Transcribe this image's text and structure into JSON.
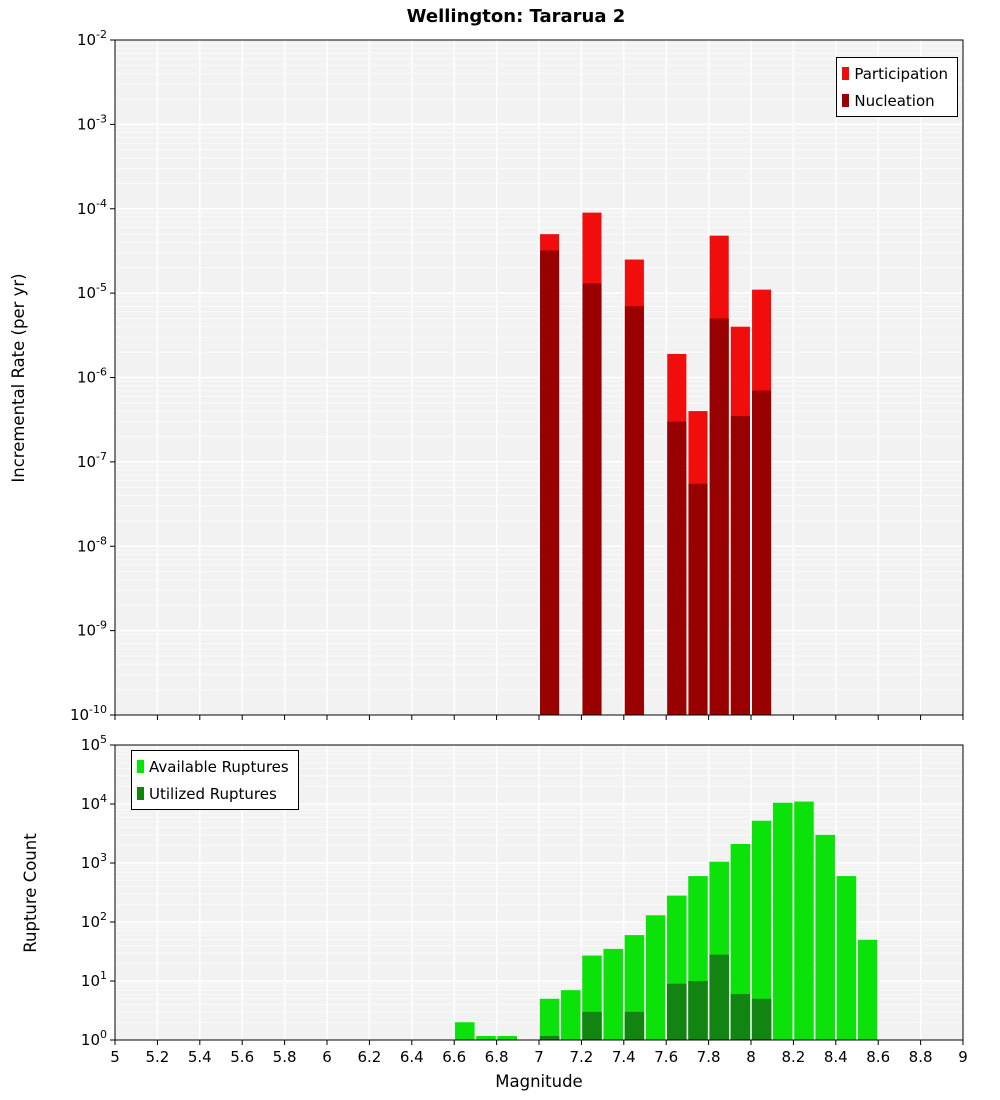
{
  "title": "Wellington: Tararua 2",
  "xlabel": "Magnitude",
  "chart_data": [
    {
      "name": "incremental-rate",
      "type": "bar",
      "ylabel": "Incremental Rate (per yr)",
      "yscale": "log",
      "ylim_exp": [
        -10,
        -2
      ],
      "xlim": [
        5,
        9
      ],
      "x_tick_step": 0.2,
      "bin_width": 0.1,
      "bar_width": 0.09,
      "grid": true,
      "legend": {
        "position": "top-right",
        "entries": [
          {
            "label": "Participation",
            "color": "#f20d0d"
          },
          {
            "label": "Nucleation",
            "color": "#990000"
          }
        ]
      },
      "series": [
        {
          "name": "Participation",
          "color": "#f20d0d",
          "points": [
            [
              7.05,
              5e-05
            ],
            [
              7.25,
              9e-05
            ],
            [
              7.45,
              2.5e-05
            ],
            [
              7.65,
              1.9e-06
            ],
            [
              7.75,
              4e-07
            ],
            [
              7.85,
              4.8e-05
            ],
            [
              7.95,
              4e-06
            ],
            [
              8.05,
              1.1e-05
            ]
          ]
        },
        {
          "name": "Nucleation",
          "color": "#990000",
          "points": [
            [
              7.05,
              3.2e-05
            ],
            [
              7.25,
              1.3e-05
            ],
            [
              7.45,
              7e-06
            ],
            [
              7.65,
              3e-07
            ],
            [
              7.75,
              5.5e-08
            ],
            [
              7.85,
              5e-06
            ],
            [
              7.95,
              3.5e-07
            ],
            [
              8.05,
              7e-07
            ]
          ]
        }
      ]
    },
    {
      "name": "rupture-count",
      "type": "bar",
      "ylabel": "Rupture Count",
      "yscale": "log",
      "ylim_exp": [
        0,
        5
      ],
      "xlim": [
        5,
        9
      ],
      "x_tick_step": 0.2,
      "bin_width": 0.1,
      "bar_width": 0.092,
      "grid": true,
      "legend": {
        "position": "top-left",
        "entries": [
          {
            "label": "Available Ruptures",
            "color": "#0ae20a"
          },
          {
            "label": "Utilized Ruptures",
            "color": "#128412"
          }
        ]
      },
      "series": [
        {
          "name": "Available Ruptures",
          "color": "#0ae20a",
          "points": [
            [
              6.65,
              2
            ],
            [
              6.75,
              1
            ],
            [
              6.85,
              1
            ],
            [
              7.05,
              5
            ],
            [
              7.15,
              7
            ],
            [
              7.25,
              27
            ],
            [
              7.35,
              35
            ],
            [
              7.45,
              60
            ],
            [
              7.55,
              130
            ],
            [
              7.65,
              280
            ],
            [
              7.75,
              600
            ],
            [
              7.85,
              1050
            ],
            [
              7.95,
              2100
            ],
            [
              8.05,
              5200
            ],
            [
              8.15,
              10500
            ],
            [
              8.25,
              11000
            ],
            [
              8.35,
              3000
            ],
            [
              8.45,
              600
            ],
            [
              8.55,
              50
            ]
          ]
        },
        {
          "name": "Utilized Ruptures",
          "color": "#128412",
          "points": [
            [
              7.05,
              1
            ],
            [
              7.25,
              3
            ],
            [
              7.45,
              3
            ],
            [
              7.65,
              9
            ],
            [
              7.75,
              10
            ],
            [
              7.85,
              28
            ],
            [
              7.95,
              6
            ],
            [
              8.05,
              5
            ]
          ]
        }
      ]
    }
  ]
}
